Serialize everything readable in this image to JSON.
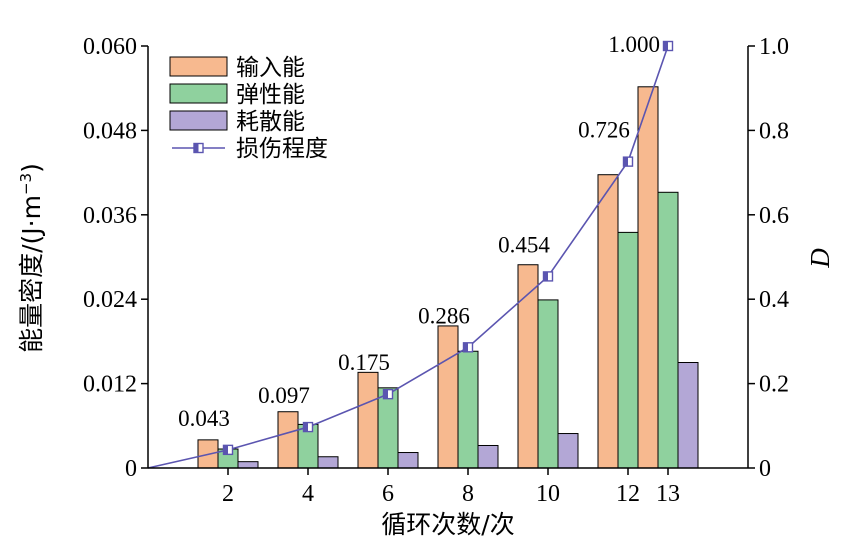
{
  "chart_data": {
    "type": "bar",
    "title": "",
    "xlabel": "循环次数/次",
    "ylabel_left": "能量密度/(J·m⁻³)",
    "ylabel_left_parts": [
      "能量密度/(J·m",
      "−3",
      ")"
    ],
    "ylabel_right": "D",
    "categories": [
      "2",
      "4",
      "6",
      "8",
      "10",
      "12",
      "13"
    ],
    "ylim_left": [
      0,
      0.06
    ],
    "ylim_right": [
      0,
      1.0
    ],
    "left_ticks": [
      "0",
      "0.012",
      "0.024",
      "0.036",
      "0.048",
      "0.060"
    ],
    "right_ticks": [
      "0",
      "0.2",
      "0.4",
      "0.6",
      "0.8",
      "1.0"
    ],
    "series": [
      {
        "name": "输入能",
        "type": "bar",
        "axis": "left",
        "color": "#f7b98f",
        "values": [
          0.004,
          0.008,
          0.0136,
          0.0202,
          0.0289,
          0.0417,
          0.0542
        ]
      },
      {
        "name": "弹性能",
        "type": "bar",
        "axis": "left",
        "color": "#8fd19e",
        "values": [
          0.0027,
          0.0062,
          0.0114,
          0.0166,
          0.0239,
          0.0335,
          0.0392
        ]
      },
      {
        "name": "耗散能",
        "type": "bar",
        "axis": "left",
        "color": "#b3a7d6",
        "values": [
          0.0009,
          0.0016,
          0.0022,
          0.0032,
          0.0049,
          0.0082,
          0.015
        ]
      },
      {
        "name": "损伤程度",
        "type": "line",
        "axis": "right",
        "color": "#5b55b0",
        "x_values": [
          0,
          2,
          4,
          6,
          8,
          10,
          12,
          13
        ],
        "values": [
          0,
          0.043,
          0.097,
          0.175,
          0.286,
          0.454,
          0.726,
          1.0
        ]
      }
    ],
    "data_labels": [
      "0.043",
      "0.097",
      "0.175",
      "0.286",
      "0.454",
      "0.726",
      "1.000"
    ],
    "legend": {
      "position": "top-left"
    },
    "grid": false
  }
}
